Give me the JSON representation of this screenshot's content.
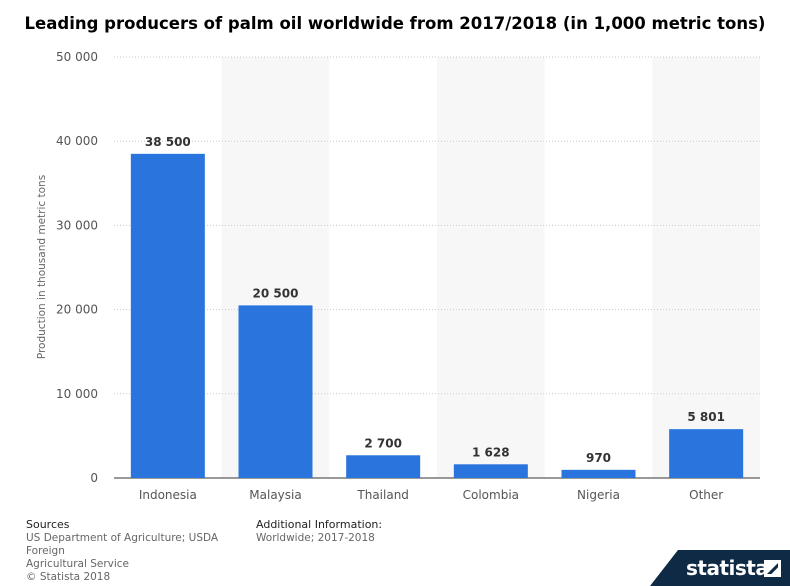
{
  "chart_data": {
    "type": "bar",
    "title": "Leading producers of palm oil worldwide from 2017/2018 (in 1,000 metric tons)",
    "xlabel": "",
    "ylabel": "Production in thousand metric tons",
    "categories": [
      "Indonesia",
      "Malaysia",
      "Thailand",
      "Colombia",
      "Nigeria",
      "Other"
    ],
    "values": [
      38500,
      20500,
      2700,
      1628,
      970,
      5801
    ],
    "value_labels": [
      "38 500",
      "20 500",
      "2 700",
      "1 628",
      "970",
      "5 801"
    ],
    "ylim": [
      0,
      50000
    ],
    "yticks": [
      0,
      10000,
      20000,
      30000,
      40000,
      50000
    ],
    "ytick_labels": [
      "0",
      "10 000",
      "20 000",
      "30 000",
      "40 000",
      "50 000"
    ],
    "grid": true,
    "bar_color": "#2a75dd"
  },
  "footer": {
    "sources_heading": "Sources",
    "sources_lines": [
      "US Department of Agriculture; USDA Foreign",
      "Agricultural Service",
      "© Statista 2018"
    ],
    "info_heading": "Additional Information:",
    "info_lines": [
      "Worldwide; 2017-2018"
    ]
  },
  "brand": {
    "name": "statista"
  }
}
